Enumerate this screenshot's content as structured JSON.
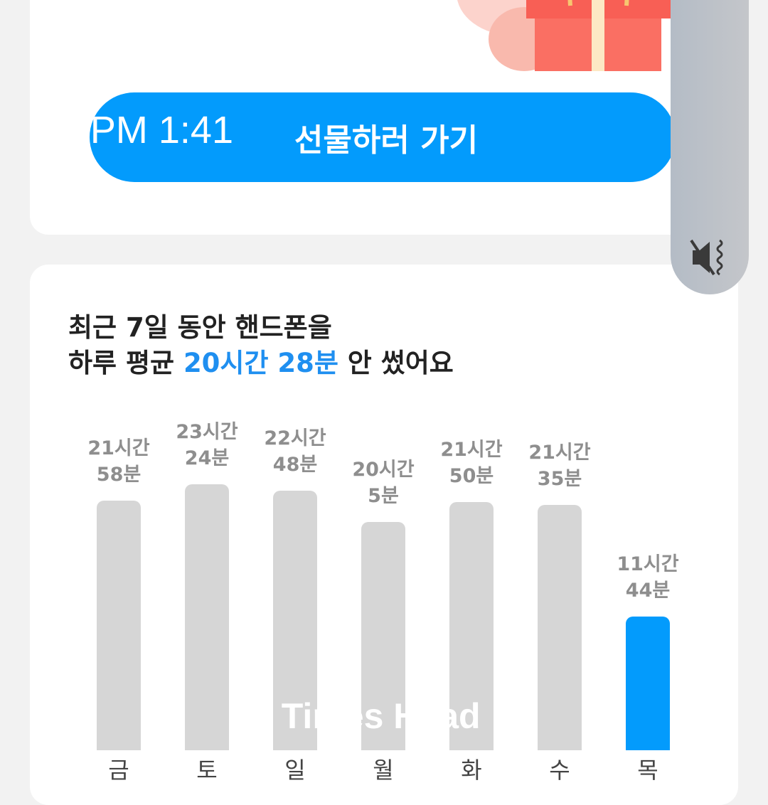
{
  "status_bar": {
    "time": "1:41 PM"
  },
  "gift_card": {
    "button_label": "선물하러 가기"
  },
  "volume_overlay": {
    "icon": "mute-vibrate-icon"
  },
  "usage_card": {
    "line1": "최근 7일 동안 핸드폰을",
    "line2_prefix": "하루 평균 ",
    "line2_highlight": "20시간 28분",
    "line2_suffix": " 안 썼어요"
  },
  "watermark": "i Times Head",
  "colors": {
    "accent": "#039bfc",
    "bar": "#d6d6d6",
    "highlight_text": "#1f8ff0"
  },
  "chart_data": {
    "type": "bar",
    "categories": [
      "금",
      "토",
      "일",
      "월",
      "화",
      "수",
      "목"
    ],
    "values_minutes": [
      1318,
      1404,
      1368,
      1205,
      1310,
      1295,
      704
    ],
    "labels": [
      [
        "21시간",
        "58분"
      ],
      [
        "23시간",
        "24분"
      ],
      [
        "22시간",
        "48분"
      ],
      [
        "20시간",
        "5분"
      ],
      [
        "21시간",
        "50분"
      ],
      [
        "21시간",
        "35분"
      ],
      [
        "11시간",
        "44분"
      ]
    ],
    "highlight_index": 6
  }
}
